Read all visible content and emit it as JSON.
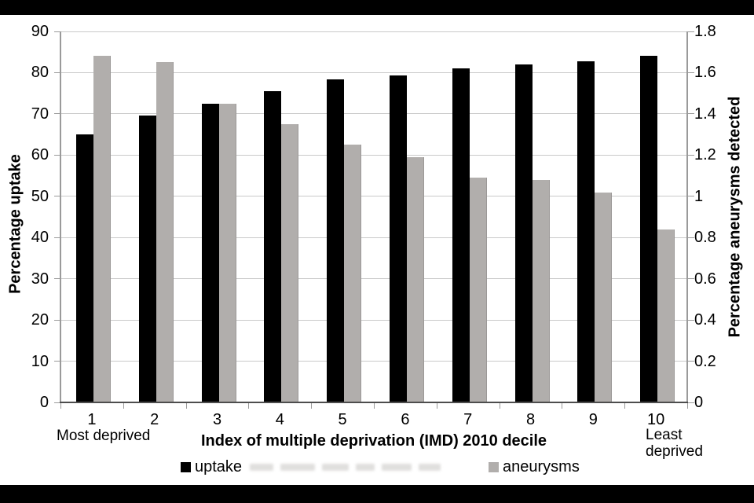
{
  "colors": {
    "uptake_bar": "#000000",
    "aneurysms_bar": "#b1aeac",
    "gridline": "#c9c9c9",
    "axis_line": "#9a9a9a",
    "frame_band": "#000000"
  },
  "chart_data": {
    "type": "bar",
    "title": "",
    "categories": [
      "1",
      "2",
      "3",
      "4",
      "5",
      "6",
      "7",
      "8",
      "9",
      "10"
    ],
    "series": [
      {
        "name": "uptake",
        "axis": "left",
        "values": [
          65.1,
          69.6,
          72.4,
          75.5,
          78.3,
          79.4,
          81.1,
          82.0,
          82.7,
          84.1
        ]
      },
      {
        "name": "aneurysms",
        "axis": "right",
        "values": [
          1.68,
          1.65,
          1.45,
          1.35,
          1.25,
          1.19,
          1.09,
          1.08,
          1.02,
          0.84
        ]
      }
    ],
    "xlabel": "Index of multiple deprivation (IMD) 2010 decile",
    "x_annotation_first": "Most deprived",
    "x_annotation_last_line1": "Least",
    "x_annotation_last_line2": "deprived",
    "left_axis": {
      "title": "Percentage uptake",
      "min": 0,
      "max": 90,
      "tick_step": 10,
      "ticks": [
        "90",
        "80",
        "70",
        "60",
        "50",
        "40",
        "30",
        "20",
        "10",
        "0"
      ]
    },
    "right_axis": {
      "title": "Percentage aneurysms detected",
      "min": 0,
      "max": 1.8,
      "tick_step": 0.2,
      "ticks": [
        "1.8",
        "1.6",
        "1.4",
        "1.2",
        "1",
        "0.8",
        "0.6",
        "0.4",
        "0.2",
        "0"
      ]
    },
    "legend": [
      {
        "label": "uptake"
      },
      {
        "label": "aneurysms"
      }
    ],
    "grid": true,
    "legend_position": "bottom"
  }
}
